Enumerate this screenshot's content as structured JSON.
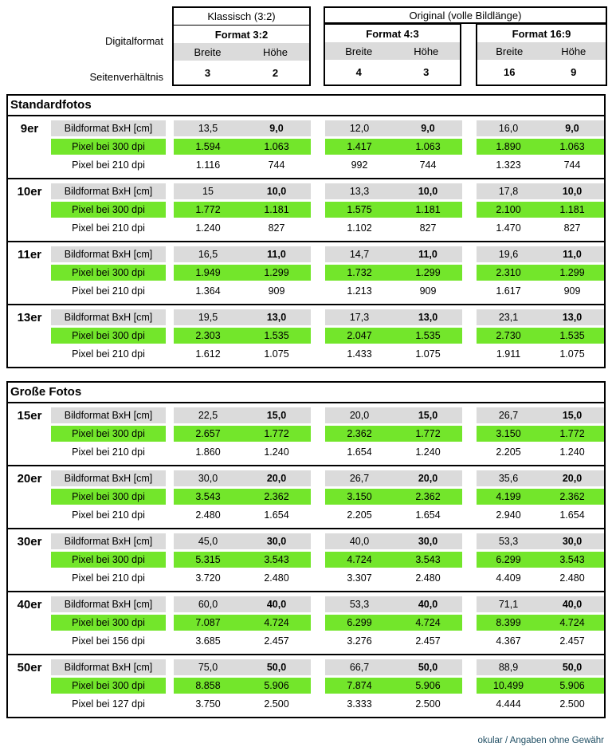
{
  "header": {
    "digitalformat_label": "Digitalformat",
    "seitenverhaeltnis_label": "Seitenverhältnis",
    "klassisch_title": "Klassisch (3:2)",
    "original_title": "Original (volle Bildlänge)",
    "col_breite": "Breite",
    "col_hoehe": "Höhe",
    "formats": [
      {
        "name": "Format 3:2",
        "breite": "3",
        "hoehe": "2"
      },
      {
        "name": "Format 4:3",
        "breite": "4",
        "hoehe": "3"
      },
      {
        "name": "Format 16:9",
        "breite": "16",
        "hoehe": "9"
      }
    ]
  },
  "sections": [
    {
      "title": "Standardfotos",
      "groups": [
        {
          "size": "9er",
          "rows": [
            {
              "label": "Bildformat BxH [cm]",
              "style": "gray",
              "values": [
                [
                  "13,5",
                  "9,0"
                ],
                [
                  "12,0",
                  "9,0"
                ],
                [
                  "16,0",
                  "9,0"
                ]
              ]
            },
            {
              "label": "Pixel bei 300 dpi",
              "style": "green",
              "values": [
                [
                  "1.594",
                  "1.063"
                ],
                [
                  "1.417",
                  "1.063"
                ],
                [
                  "1.890",
                  "1.063"
                ]
              ]
            },
            {
              "label": "Pixel bei 210 dpi",
              "style": "plain",
              "values": [
                [
                  "1.116",
                  "744"
                ],
                [
                  "992",
                  "744"
                ],
                [
                  "1.323",
                  "744"
                ]
              ]
            }
          ]
        },
        {
          "size": "10er",
          "rows": [
            {
              "label": "Bildformat BxH [cm]",
              "style": "gray",
              "values": [
                [
                  "15",
                  "10,0"
                ],
                [
                  "13,3",
                  "10,0"
                ],
                [
                  "17,8",
                  "10,0"
                ]
              ]
            },
            {
              "label": "Pixel bei 300 dpi",
              "style": "green",
              "values": [
                [
                  "1.772",
                  "1.181"
                ],
                [
                  "1.575",
                  "1.181"
                ],
                [
                  "2.100",
                  "1.181"
                ]
              ]
            },
            {
              "label": "Pixel bei 210 dpi",
              "style": "plain",
              "values": [
                [
                  "1.240",
                  "827"
                ],
                [
                  "1.102",
                  "827"
                ],
                [
                  "1.470",
                  "827"
                ]
              ]
            }
          ]
        },
        {
          "size": "11er",
          "rows": [
            {
              "label": "Bildformat BxH [cm]",
              "style": "gray",
              "values": [
                [
                  "16,5",
                  "11,0"
                ],
                [
                  "14,7",
                  "11,0"
                ],
                [
                  "19,6",
                  "11,0"
                ]
              ]
            },
            {
              "label": "Pixel bei 300 dpi",
              "style": "green",
              "values": [
                [
                  "1.949",
                  "1.299"
                ],
                [
                  "1.732",
                  "1.299"
                ],
                [
                  "2.310",
                  "1.299"
                ]
              ]
            },
            {
              "label": "Pixel bei 210 dpi",
              "style": "plain",
              "values": [
                [
                  "1.364",
                  "909"
                ],
                [
                  "1.213",
                  "909"
                ],
                [
                  "1.617",
                  "909"
                ]
              ]
            }
          ]
        },
        {
          "size": "13er",
          "rows": [
            {
              "label": "Bildformat BxH [cm]",
              "style": "gray",
              "values": [
                [
                  "19,5",
                  "13,0"
                ],
                [
                  "17,3",
                  "13,0"
                ],
                [
                  "23,1",
                  "13,0"
                ]
              ]
            },
            {
              "label": "Pixel bei 300 dpi",
              "style": "green",
              "values": [
                [
                  "2.303",
                  "1.535"
                ],
                [
                  "2.047",
                  "1.535"
                ],
                [
                  "2.730",
                  "1.535"
                ]
              ]
            },
            {
              "label": "Pixel bei 210 dpi",
              "style": "plain",
              "values": [
                [
                  "1.612",
                  "1.075"
                ],
                [
                  "1.433",
                  "1.075"
                ],
                [
                  "1.911",
                  "1.075"
                ]
              ]
            }
          ]
        }
      ]
    },
    {
      "title": "Große Fotos",
      "groups": [
        {
          "size": "15er",
          "rows": [
            {
              "label": "Bildformat BxH [cm]",
              "style": "gray",
              "values": [
                [
                  "22,5",
                  "15,0"
                ],
                [
                  "20,0",
                  "15,0"
                ],
                [
                  "26,7",
                  "15,0"
                ]
              ]
            },
            {
              "label": "Pixel bei 300 dpi",
              "style": "green",
              "values": [
                [
                  "2.657",
                  "1.772"
                ],
                [
                  "2.362",
                  "1.772"
                ],
                [
                  "3.150",
                  "1.772"
                ]
              ]
            },
            {
              "label": "Pixel bei 210 dpi",
              "style": "plain",
              "values": [
                [
                  "1.860",
                  "1.240"
                ],
                [
                  "1.654",
                  "1.240"
                ],
                [
                  "2.205",
                  "1.240"
                ]
              ]
            }
          ]
        },
        {
          "size": "20er",
          "rows": [
            {
              "label": "Bildformat BxH [cm]",
              "style": "gray",
              "values": [
                [
                  "30,0",
                  "20,0"
                ],
                [
                  "26,7",
                  "20,0"
                ],
                [
                  "35,6",
                  "20,0"
                ]
              ]
            },
            {
              "label": "Pixel bei 300 dpi",
              "style": "green",
              "values": [
                [
                  "3.543",
                  "2.362"
                ],
                [
                  "3.150",
                  "2.362"
                ],
                [
                  "4.199",
                  "2.362"
                ]
              ]
            },
            {
              "label": "Pixel bei 210 dpi",
              "style": "plain",
              "values": [
                [
                  "2.480",
                  "1.654"
                ],
                [
                  "2.205",
                  "1.654"
                ],
                [
                  "2.940",
                  "1.654"
                ]
              ]
            }
          ]
        },
        {
          "size": "30er",
          "rows": [
            {
              "label": "Bildformat BxH [cm]",
              "style": "gray",
              "values": [
                [
                  "45,0",
                  "30,0"
                ],
                [
                  "40,0",
                  "30,0"
                ],
                [
                  "53,3",
                  "30,0"
                ]
              ]
            },
            {
              "label": "Pixel bei 300 dpi",
              "style": "green",
              "values": [
                [
                  "5.315",
                  "3.543"
                ],
                [
                  "4.724",
                  "3.543"
                ],
                [
                  "6.299",
                  "3.543"
                ]
              ]
            },
            {
              "label": "Pixel bei 210 dpi",
              "style": "plain",
              "values": [
                [
                  "3.720",
                  "2.480"
                ],
                [
                  "3.307",
                  "2.480"
                ],
                [
                  "4.409",
                  "2.480"
                ]
              ]
            }
          ]
        },
        {
          "size": "40er",
          "rows": [
            {
              "label": "Bildformat BxH [cm]",
              "style": "gray",
              "values": [
                [
                  "60,0",
                  "40,0"
                ],
                [
                  "53,3",
                  "40,0"
                ],
                [
                  "71,1",
                  "40,0"
                ]
              ]
            },
            {
              "label": "Pixel bei 300 dpi",
              "style": "green",
              "values": [
                [
                  "7.087",
                  "4.724"
                ],
                [
                  "6.299",
                  "4.724"
                ],
                [
                  "8.399",
                  "4.724"
                ]
              ]
            },
            {
              "label": "Pixel bei 156 dpi",
              "style": "plain",
              "values": [
                [
                  "3.685",
                  "2.457"
                ],
                [
                  "3.276",
                  "2.457"
                ],
                [
                  "4.367",
                  "2.457"
                ]
              ]
            }
          ]
        },
        {
          "size": "50er",
          "rows": [
            {
              "label": "Bildformat BxH [cm]",
              "style": "gray",
              "values": [
                [
                  "75,0",
                  "50,0"
                ],
                [
                  "66,7",
                  "50,0"
                ],
                [
                  "88,9",
                  "50,0"
                ]
              ]
            },
            {
              "label": "Pixel bei 300 dpi",
              "style": "green",
              "values": [
                [
                  "8.858",
                  "5.906"
                ],
                [
                  "7.874",
                  "5.906"
                ],
                [
                  "10.499",
                  "5.906"
                ]
              ]
            },
            {
              "label": "Pixel bei 127 dpi",
              "style": "plain",
              "values": [
                [
                  "3.750",
                  "2.500"
                ],
                [
                  "3.333",
                  "2.500"
                ],
                [
                  "4.444",
                  "2.500"
                ]
              ]
            }
          ]
        }
      ]
    }
  ],
  "footer": {
    "credit": "okular / Angaben ohne Gewähr"
  },
  "colors": {
    "highlight_green": "#73E62B",
    "header_gray": "#DBDBDB",
    "border_black": "#000000",
    "footer_text": "#1F4E63"
  }
}
